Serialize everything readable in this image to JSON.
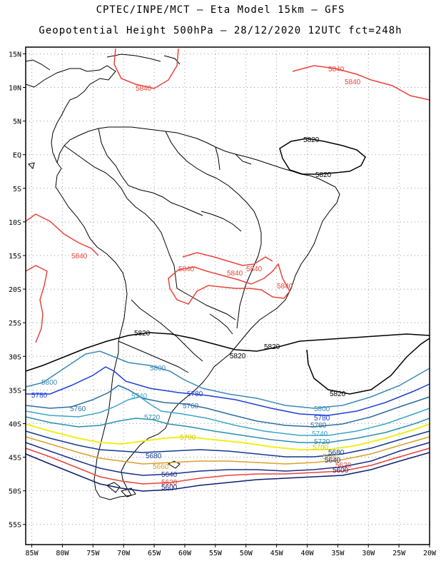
{
  "header": {
    "line1": "CPTEC/INPE/MCT –  Eta Model 15km – GFS",
    "line2": "Geopotential Height 500hPa – 28/12/2020 12UTC fct=248h"
  },
  "axes": {
    "lat_labels": [
      "15N",
      "10N",
      "5N",
      "EQ",
      "5S",
      "10S",
      "15S",
      "20S",
      "25S",
      "30S",
      "35S",
      "40S",
      "45S",
      "50S",
      "55S"
    ],
    "lon_labels": [
      "85W",
      "80W",
      "75W",
      "70W",
      "65W",
      "60W",
      "55W",
      "50W",
      "45W",
      "40W",
      "35W",
      "30W",
      "25W",
      "20W"
    ],
    "lat_range": [
      16,
      -58
    ],
    "lon_range": [
      -86,
      -20
    ],
    "grid": "dotted"
  },
  "colors": {
    "c5500": "#0b1f6e",
    "c5620": "#e8433d",
    "c5640": "#1a2f8a",
    "c5660": "#d9a227",
    "c5680": "#143a8c",
    "c5700": "#f2ee1a",
    "c5720": "#2a8fb0",
    "c5740": "#3aa6c8",
    "c5760": "#2b6ea0",
    "c5780": "#1f3fd6",
    "c5800": "#3a8ab8",
    "c5820": "#000000",
    "c5840": "#e8433d"
  },
  "contour_labels": [
    {
      "text": "5840",
      "color": "#e8433d"
    },
    {
      "text": "5840",
      "color": "#e8433d"
    },
    {
      "text": "5840",
      "color": "#e8433d"
    },
    {
      "text": "5840",
      "color": "#e8433d"
    },
    {
      "text": "5840",
      "color": "#e8433d"
    },
    {
      "text": "5840",
      "color": "#e8433d"
    },
    {
      "text": "5840",
      "color": "#e8433d"
    },
    {
      "text": "5840",
      "color": "#e8433d"
    },
    {
      "text": "5820",
      "color": "#000000"
    },
    {
      "text": "5820",
      "color": "#000000"
    },
    {
      "text": "5820",
      "color": "#000000"
    },
    {
      "text": "5820",
      "color": "#000000"
    },
    {
      "text": "5820",
      "color": "#000000"
    },
    {
      "text": "5820",
      "color": "#000000"
    },
    {
      "text": "5800",
      "color": "#3a8ab8"
    },
    {
      "text": "5800",
      "color": "#3a8ab8"
    },
    {
      "text": "5800",
      "color": "#3a8ab8"
    },
    {
      "text": "5780",
      "color": "#1f3fd6"
    },
    {
      "text": "5780",
      "color": "#1f3fd6"
    },
    {
      "text": "5780",
      "color": "#1f3fd6"
    },
    {
      "text": "5760",
      "color": "#2b6ea0"
    },
    {
      "text": "5760",
      "color": "#2b6ea0"
    },
    {
      "text": "5760",
      "color": "#2b6ea0"
    },
    {
      "text": "5740",
      "color": "#3aa6c8"
    },
    {
      "text": "5740",
      "color": "#3aa6c8"
    },
    {
      "text": "5720",
      "color": "#2a8fb0"
    },
    {
      "text": "5720",
      "color": "#2a8fb0"
    },
    {
      "text": "5700",
      "color": "#d4c800"
    },
    {
      "text": "5700",
      "color": "#d4c800"
    },
    {
      "text": "5680",
      "color": "#143a8c"
    },
    {
      "text": "5680",
      "color": "#143a8c"
    },
    {
      "text": "5660",
      "color": "#d9a227"
    },
    {
      "text": "5660",
      "color": "#d9a227"
    },
    {
      "text": "5640",
      "color": "#1a2f8a"
    },
    {
      "text": "5640",
      "color": "#1a2f8a"
    },
    {
      "text": "5620",
      "color": "#e8433d"
    },
    {
      "text": "5620",
      "color": "#e8433d"
    },
    {
      "text": "5600",
      "color": "#0b1f6e"
    },
    {
      "text": "5600",
      "color": "#0b1f6e"
    }
  ]
}
